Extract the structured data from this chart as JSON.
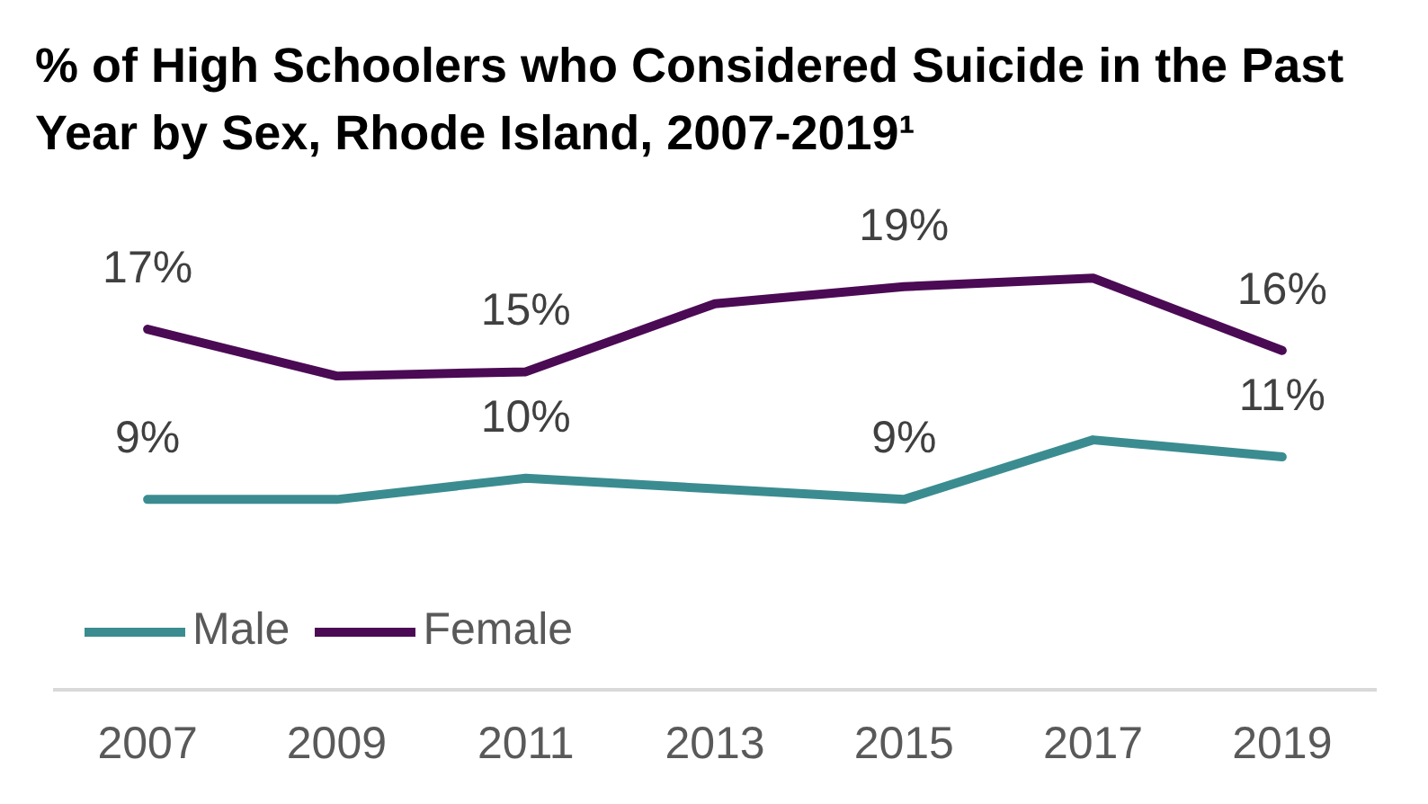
{
  "chart_data": {
    "type": "line",
    "title": "% of High Schoolers who Considered Suicide in the Past Year by Sex, Rhode Island, 2007-2019¹",
    "categories": [
      "2007",
      "2009",
      "2011",
      "2013",
      "2015",
      "2017",
      "2019"
    ],
    "series": [
      {
        "name": "Male",
        "color": "#3b8c90",
        "values": [
          9,
          9,
          10,
          9.5,
          9,
          11.8,
          11
        ],
        "value_labels": [
          "9%",
          null,
          "10%",
          null,
          "9%",
          null,
          "11%"
        ]
      },
      {
        "name": "Female",
        "color": "#4b0a54",
        "values": [
          17,
          14.8,
          15,
          18.2,
          19,
          19.4,
          16
        ],
        "value_labels": [
          "17%",
          null,
          "15%",
          null,
          "19%",
          null,
          "16%"
        ]
      }
    ],
    "tick_labels": "x",
    "legend": "bottom left",
    "line_style": "solid"
  }
}
